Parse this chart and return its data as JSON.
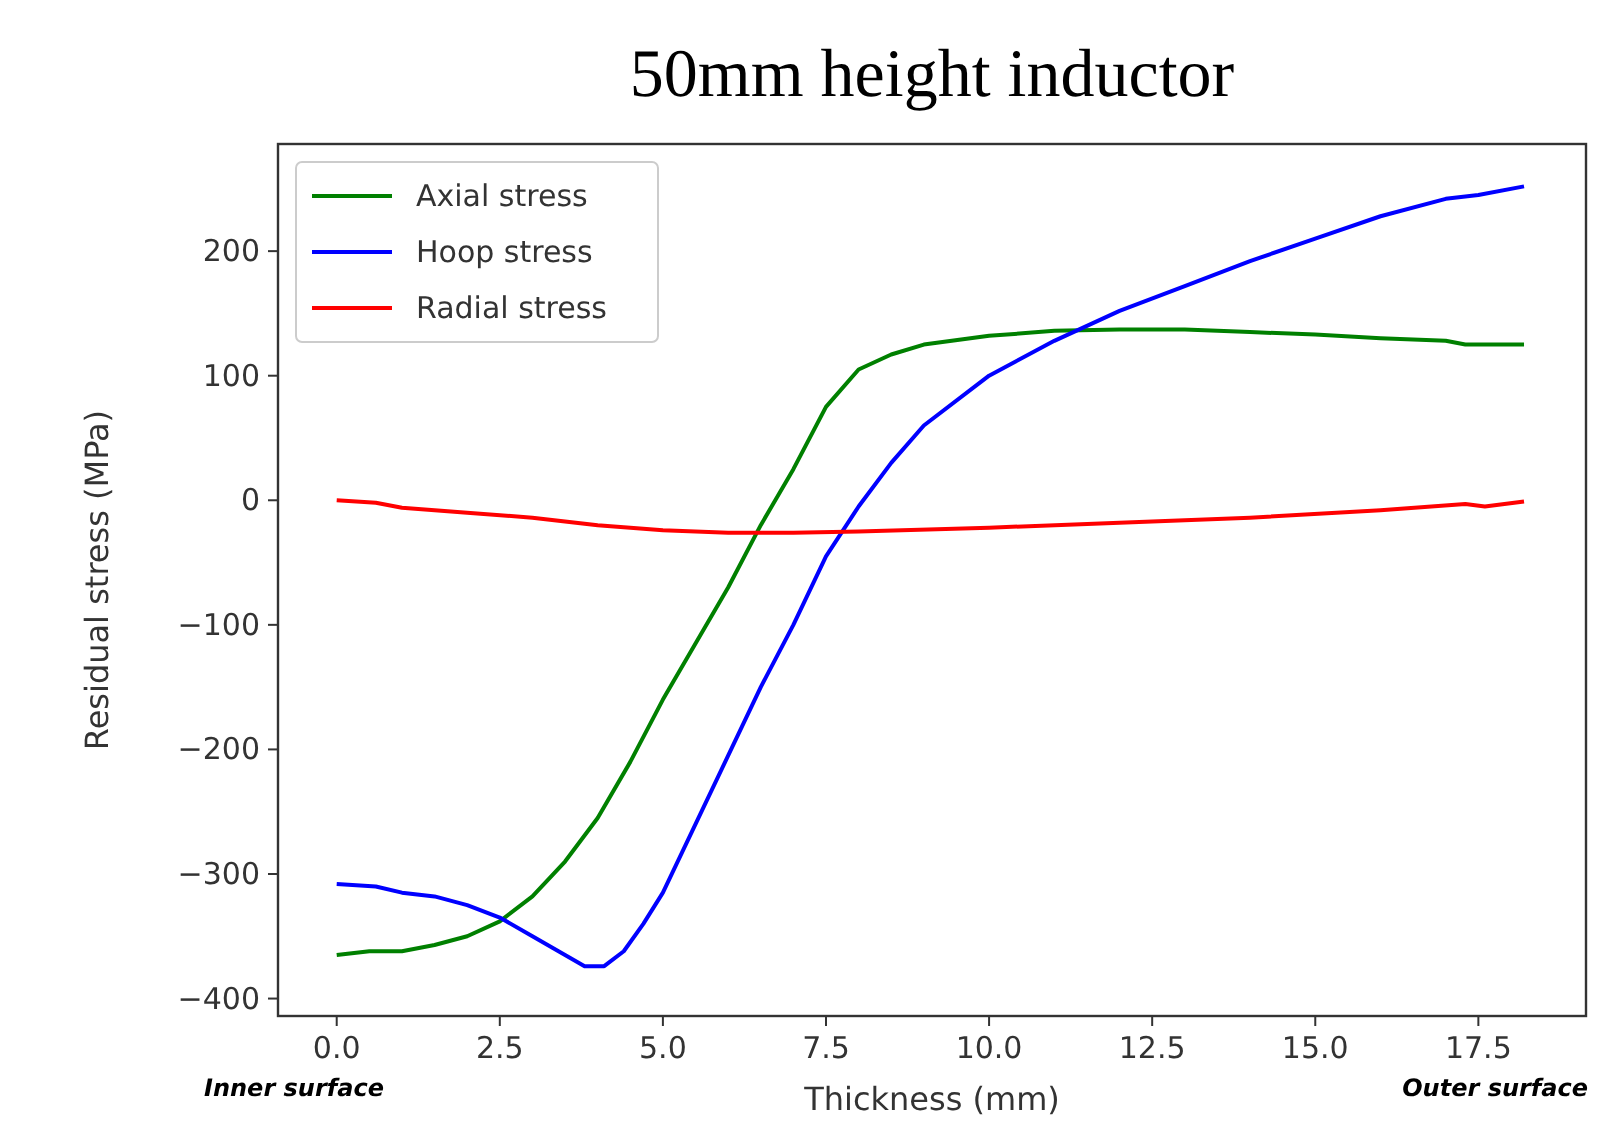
{
  "chart_data": {
    "type": "line",
    "title": "50mm height inductor",
    "xlabel": "Thickness (mm)",
    "ylabel": "Residual stress (MPa)",
    "xlim": [
      -0.9,
      19.15
    ],
    "ylim": [
      -414,
      286
    ],
    "xticks": [
      {
        "value": 0,
        "label": "0.0"
      },
      {
        "value": 2.5,
        "label": "2.5"
      },
      {
        "value": 5,
        "label": "5.0"
      },
      {
        "value": 7.5,
        "label": "7.5"
      },
      {
        "value": 10,
        "label": "10.0"
      },
      {
        "value": 12.5,
        "label": "12.5"
      },
      {
        "value": 15,
        "label": "15.0"
      },
      {
        "value": 17.5,
        "label": "17.5"
      }
    ],
    "yticks": [
      {
        "value": -400,
        "label": "−400"
      },
      {
        "value": -300,
        "label": "−300"
      },
      {
        "value": -200,
        "label": "−200"
      },
      {
        "value": -100,
        "label": "−100"
      },
      0,
      100,
      200
    ],
    "grid": false,
    "legend": "top left",
    "annotations": [
      "Inner surface",
      "Outer surface"
    ],
    "series": [
      {
        "name": "Axial stress",
        "color": "#008000",
        "x": [
          0,
          0.5,
          1,
          1.5,
          2,
          2.5,
          3,
          3.5,
          4,
          4.5,
          5,
          5.5,
          6,
          6.5,
          7,
          7.5,
          8,
          8.5,
          9,
          10,
          11,
          12,
          13,
          14,
          15,
          16,
          17,
          17.3,
          18.2
        ],
        "values": [
          -365,
          -362,
          -362,
          -357,
          -350,
          -338,
          -318,
          -290,
          -255,
          -210,
          -160,
          -115,
          -70,
          -20,
          25,
          75,
          105,
          117,
          125,
          132,
          136,
          137,
          137,
          135,
          133,
          130,
          128,
          125,
          125
        ]
      },
      {
        "name": "Hoop stress",
        "color": "#0000ff",
        "x": [
          0,
          0.6,
          1,
          1.5,
          2,
          2.5,
          3,
          3.5,
          3.8,
          4.1,
          4.4,
          4.7,
          5,
          5.5,
          6,
          6.5,
          7,
          7.5,
          8,
          8.5,
          9,
          10,
          11,
          12,
          13,
          14,
          15,
          16,
          17,
          17.5,
          18.2
        ],
        "values": [
          -308,
          -310,
          -315,
          -318,
          -325,
          -335,
          -350,
          -365,
          -374,
          -374,
          -362,
          -340,
          -315,
          -260,
          -205,
          -150,
          -100,
          -45,
          -5,
          30,
          60,
          100,
          128,
          152,
          172,
          192,
          210,
          228,
          242,
          245,
          252
        ]
      },
      {
        "name": "Radial stress",
        "color": "#ff0000",
        "x": [
          0,
          0.6,
          1,
          2,
          3,
          4,
          5,
          6,
          7,
          8,
          10,
          12,
          14,
          16,
          17.3,
          17.6,
          18.2
        ],
        "values": [
          0,
          -2,
          -6,
          -10,
          -14,
          -20,
          -24,
          -26,
          -26,
          -25,
          -22,
          -18,
          -14,
          -8,
          -3,
          -5,
          -1
        ]
      }
    ]
  }
}
